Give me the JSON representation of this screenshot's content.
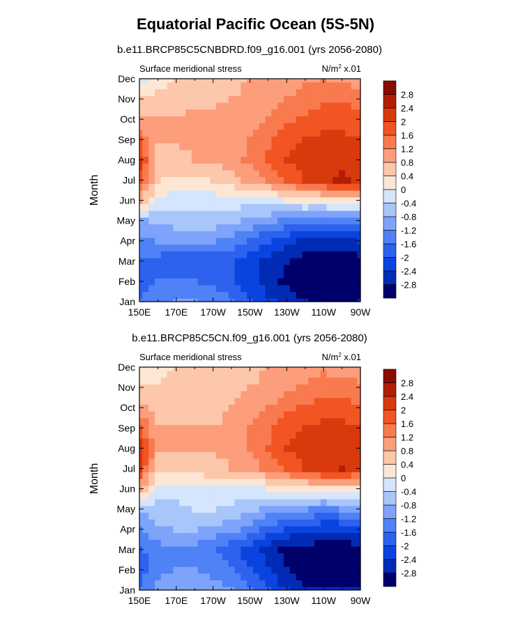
{
  "title": "Equatorial Pacific Ocean (5S-5N)",
  "chart_data": [
    {
      "type": "heatmap",
      "title": "b.e11.BRCP85C5CNBDRD.f09_g16.001 (yrs 2056-2080)",
      "left_string": "Surface meridional stress",
      "units": "N/m",
      "units_sup": "2",
      "units_scale": " x.01",
      "xlabel": "",
      "ylabel": "Month",
      "x_tick_labels": [
        "150E",
        "170E",
        "170W",
        "150W",
        "130W",
        "110W",
        "90W"
      ],
      "x_range_degrees_east": [
        150,
        270
      ],
      "y_tick_labels": [
        "Jan",
        "Feb",
        "Mar",
        "Apr",
        "May",
        "Jun",
        "Jul",
        "Aug",
        "Sep",
        "Oct",
        "Nov",
        "Dec"
      ],
      "colorbar_levels": [
        -2.8,
        -2.4,
        -2,
        -1.6,
        -1.2,
        -0.8,
        -0.4,
        0,
        0.4,
        0.8,
        1.2,
        1.6,
        2,
        2.4,
        2.8
      ],
      "x_points": [
        "150E",
        "160E",
        "170E",
        "180",
        "170W",
        "160W",
        "150W",
        "140W",
        "130W",
        "120W",
        "110W",
        "100W",
        "90W"
      ],
      "grid_values": [
        [
          -1.6,
          -1.3,
          -1.2,
          -1.2,
          -1.3,
          -1.5,
          -1.9,
          -2.3,
          -2.6,
          -2.8,
          -2.9,
          -2.9,
          -2.8
        ],
        [
          -1.8,
          -1.6,
          -1.6,
          -1.6,
          -1.7,
          -2.0,
          -2.3,
          -2.6,
          -2.9,
          -3.0,
          -3.1,
          -3.1,
          -3.0
        ],
        [
          -1.7,
          -1.8,
          -2.0,
          -2.0,
          -1.9,
          -2.0,
          -2.2,
          -2.5,
          -2.8,
          -3.0,
          -3.1,
          -3.1,
          -3.0
        ],
        [
          -1.3,
          -1.2,
          -1.2,
          -1.1,
          -1.2,
          -1.4,
          -1.7,
          -2.0,
          -2.3,
          -2.5,
          -2.5,
          -2.5,
          -2.4
        ],
        [
          -0.9,
          -0.7,
          -0.6,
          -0.6,
          -0.6,
          -0.7,
          -0.9,
          -1.1,
          -1.3,
          -1.4,
          -1.5,
          -1.4,
          -1.3
        ],
        [
          0.8,
          -0.1,
          -0.2,
          -0.3,
          -0.2,
          -0.2,
          -0.2,
          -0.1,
          0.0,
          0.1,
          0.1,
          0.2,
          0.2
        ],
        [
          1.9,
          0.4,
          0.3,
          0.3,
          0.4,
          0.6,
          0.9,
          1.2,
          1.6,
          2.0,
          2.3,
          2.5,
          2.3
        ],
        [
          2.1,
          0.7,
          0.7,
          0.8,
          0.8,
          1.0,
          1.3,
          1.7,
          2.0,
          2.2,
          2.3,
          2.3,
          2.1
        ],
        [
          1.6,
          0.8,
          0.8,
          0.9,
          0.9,
          1.0,
          1.2,
          1.5,
          1.8,
          2.0,
          2.1,
          2.1,
          2.0
        ],
        [
          0.9,
          0.8,
          0.8,
          0.9,
          0.9,
          1.0,
          1.1,
          1.2,
          1.5,
          1.7,
          1.9,
          1.9,
          1.8
        ],
        [
          0.4,
          0.6,
          0.7,
          0.7,
          0.7,
          0.8,
          0.9,
          1.0,
          1.2,
          1.4,
          1.5,
          1.5,
          1.4
        ],
        [
          -0.1,
          0.2,
          0.4,
          0.5,
          0.6,
          0.7,
          0.8,
          0.9,
          1.0,
          1.1,
          1.2,
          1.1,
          1.0
        ]
      ]
    },
    {
      "type": "heatmap",
      "title": "b.e11.BRCP85C5CN.f09_g16.001 (yrs 2056-2080)",
      "left_string": "Surface meridional stress",
      "units": "N/m",
      "units_sup": "2",
      "units_scale": " x.01",
      "xlabel": "",
      "ylabel": "Month",
      "x_tick_labels": [
        "150E",
        "170E",
        "170W",
        "150W",
        "130W",
        "110W",
        "90W"
      ],
      "x_range_degrees_east": [
        150,
        270
      ],
      "y_tick_labels": [
        "Jan",
        "Feb",
        "Mar",
        "Apr",
        "May",
        "Jun",
        "Jul",
        "Aug",
        "Sep",
        "Oct",
        "Nov",
        "Dec"
      ],
      "colorbar_levels": [
        -2.8,
        -2.4,
        -2,
        -1.6,
        -1.2,
        -0.8,
        -0.4,
        0,
        0.4,
        0.8,
        1.2,
        1.6,
        2,
        2.4,
        2.8
      ],
      "x_points": [
        "150E",
        "160E",
        "170E",
        "180",
        "170W",
        "160W",
        "150W",
        "140W",
        "130W",
        "120W",
        "110W",
        "100W",
        "90W"
      ],
      "grid_values": [
        [
          -1.6,
          -1.1,
          -0.9,
          -0.9,
          -1.0,
          -1.2,
          -1.6,
          -2.0,
          -2.4,
          -2.7,
          -2.8,
          -2.8,
          -2.7
        ],
        [
          -1.8,
          -1.3,
          -1.2,
          -1.2,
          -1.3,
          -1.6,
          -2.0,
          -2.4,
          -2.8,
          -3.0,
          -3.1,
          -3.1,
          -3.0
        ],
        [
          -1.7,
          -1.4,
          -1.3,
          -1.4,
          -1.6,
          -1.9,
          -2.2,
          -2.6,
          -2.9,
          -3.0,
          -3.1,
          -3.1,
          -3.0
        ],
        [
          -1.3,
          -0.9,
          -0.8,
          -0.8,
          -0.9,
          -1.1,
          -1.4,
          -1.8,
          -2.1,
          -2.3,
          -2.4,
          -2.4,
          -2.3
        ],
        [
          -0.8,
          -0.6,
          -0.5,
          -0.4,
          -0.4,
          -0.5,
          -0.7,
          -0.9,
          -1.1,
          -1.2,
          -1.3,
          -1.2,
          -1.1
        ],
        [
          0.8,
          -0.1,
          -0.2,
          -0.2,
          -0.1,
          -0.1,
          -0.1,
          0.0,
          0.1,
          0.2,
          0.2,
          0.2,
          0.2
        ],
        [
          2.0,
          0.6,
          0.6,
          0.6,
          0.7,
          0.8,
          1.0,
          1.3,
          1.6,
          2.0,
          2.3,
          2.4,
          2.2
        ],
        [
          2.2,
          0.8,
          0.8,
          0.8,
          0.8,
          0.9,
          1.2,
          1.6,
          2.0,
          2.2,
          2.3,
          2.3,
          2.1
        ],
        [
          1.7,
          0.8,
          0.8,
          0.8,
          0.8,
          0.9,
          1.2,
          1.5,
          1.8,
          2.0,
          2.1,
          2.1,
          2.0
        ],
        [
          0.9,
          0.7,
          0.7,
          0.7,
          0.7,
          0.8,
          1.0,
          1.2,
          1.5,
          1.7,
          1.8,
          1.8,
          1.7
        ],
        [
          0.5,
          0.5,
          0.6,
          0.6,
          0.6,
          0.7,
          0.8,
          0.9,
          1.1,
          1.3,
          1.4,
          1.4,
          1.3
        ],
        [
          0.0,
          0.2,
          0.4,
          0.5,
          0.5,
          0.6,
          0.7,
          0.8,
          0.9,
          1.0,
          1.1,
          1.0,
          0.9
        ]
      ]
    }
  ],
  "colors": {
    "palette": [
      "#00006b",
      "#002cb5",
      "#0a44e0",
      "#2c62ee",
      "#4f82f6",
      "#7ea3fa",
      "#a9c6fb",
      "#d4e5fd",
      "#fee6d4",
      "#fcc7aa",
      "#fc9e7c",
      "#f97a4f",
      "#f25422",
      "#d83a0d",
      "#b21e04",
      "#8a0b00"
    ]
  }
}
